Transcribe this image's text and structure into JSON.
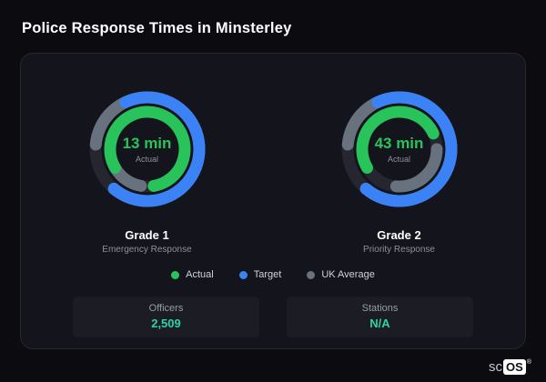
{
  "page": {
    "title": "Police Response Times in Minsterley"
  },
  "colors": {
    "actual": "#29c35c",
    "target": "#3b82f6",
    "uk_average": "#68727f",
    "track": "#262630",
    "stat_value": "#2bd3a7"
  },
  "chart_data": [
    {
      "type": "gauge",
      "title": "Grade 1",
      "subtitle": "Emergency Response",
      "center_value": "13 min",
      "center_label": "Actual",
      "actual_minutes": 13,
      "units": "minutes",
      "arcs": [
        {
          "ring": "outer",
          "series": "UK Average",
          "color_key": "uk_average",
          "start_deg": 185,
          "sweep_deg": 305
        },
        {
          "ring": "outer",
          "series": "Target",
          "color_key": "target",
          "start_deg": 245,
          "sweep_deg": 245
        },
        {
          "ring": "inner",
          "series": "UK Average",
          "color_key": "uk_average",
          "start_deg": 100,
          "sweep_deg": 50
        },
        {
          "ring": "inner",
          "series": "Actual",
          "color_key": "actual",
          "start_deg": 150,
          "sweep_deg": 290
        }
      ]
    },
    {
      "type": "gauge",
      "title": "Grade 2",
      "subtitle": "Priority Response",
      "center_value": "43 min",
      "center_label": "Actual",
      "actual_minutes": 43,
      "units": "minutes",
      "arcs": [
        {
          "ring": "outer",
          "series": "UK Average",
          "color_key": "uk_average",
          "start_deg": 185,
          "sweep_deg": 305
        },
        {
          "ring": "outer",
          "series": "Target",
          "color_key": "target",
          "start_deg": 245,
          "sweep_deg": 245
        },
        {
          "ring": "inner",
          "series": "UK Average",
          "color_key": "uk_average",
          "start_deg": 0,
          "sweep_deg": 95
        },
        {
          "ring": "inner",
          "series": "Actual",
          "color_key": "actual",
          "start_deg": 150,
          "sweep_deg": 185
        }
      ]
    }
  ],
  "legend": {
    "items": [
      {
        "label": "Actual",
        "key": "actual"
      },
      {
        "label": "Target",
        "key": "target"
      },
      {
        "label": "UK Average",
        "key": "uk_average"
      }
    ]
  },
  "stats": [
    {
      "label": "Officers",
      "value": "2,509"
    },
    {
      "label": "Stations",
      "value": "N/A"
    }
  ],
  "brand": {
    "prefix": "sc",
    "chip": "OS",
    "reg": "®"
  }
}
